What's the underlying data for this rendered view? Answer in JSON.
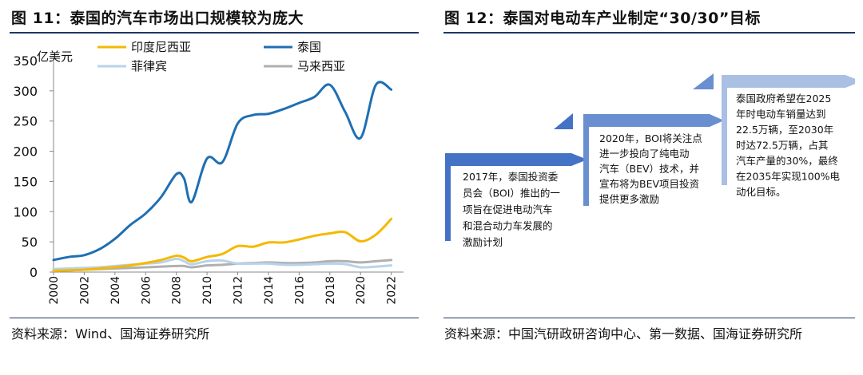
{
  "left_panel": {
    "title": "图 11：泰国的汽车市场出口规模较为庞大",
    "source": "资料来源：Wind、国海证券研究所"
  },
  "right_panel": {
    "title": "图 12：泰国对电动车产业制定“30/30”目标",
    "source": "资料来源：中国汽研政研咨询中心、第一数据、国海证券研究所",
    "steps": [
      {
        "lines": [
          "2017年，泰国投资委",
          "员会（BOI）推出的一",
          "项旨在促进电动汽车",
          "和混合动力车发展的",
          "激励计划"
        ],
        "color": "#4472c4"
      },
      {
        "lines": [
          "2020年，BOI将关注点",
          "进一步投向了纯电动",
          "汽车（BEV）技术，并",
          "宣布将为BEV项目投资",
          "提供更多激励"
        ],
        "color": "#6a8fd0"
      },
      {
        "lines": [
          "泰国政府希望在2025",
          "年时电动车销量达到",
          "22.5万辆，至2030年",
          "时达72.5万辆，占其",
          "汽车产量的30%，最终",
          "在2035年实现100%电",
          "动化目标。"
        ],
        "color": "#a9bfe4"
      }
    ]
  },
  "chart_data": {
    "type": "line",
    "ylabel": "亿美元",
    "ylim": [
      0,
      350
    ],
    "yticks": [
      0,
      50,
      100,
      150,
      200,
      250,
      300,
      350
    ],
    "xticks": [
      "2000",
      "2002",
      "2004",
      "2006",
      "2008",
      "2010",
      "2012",
      "2014",
      "2016",
      "2018",
      "2020",
      "2022"
    ],
    "grid": false,
    "legend_position": "top",
    "x": [
      2000,
      2001,
      2002,
      2003,
      2004,
      2005,
      2006,
      2007,
      2008,
      2008.5,
      2009,
      2010,
      2011,
      2012,
      2013,
      2014,
      2015,
      2016,
      2017,
      2018,
      2019,
      2020,
      2021,
      2022
    ],
    "series": [
      {
        "name": "印度尼西亚",
        "color": "#f5b800",
        "values": [
          2,
          3,
          4,
          6,
          8,
          11,
          15,
          20,
          27,
          24,
          18,
          25,
          30,
          43,
          42,
          49,
          49,
          54,
          60,
          64,
          66,
          51,
          62,
          88
        ]
      },
      {
        "name": "泰国",
        "color": "#1f6fb2",
        "values": [
          20,
          25,
          28,
          38,
          55,
          78,
          97,
          124,
          162,
          155,
          116,
          188,
          182,
          246,
          260,
          262,
          270,
          280,
          290,
          310,
          265,
          222,
          310,
          302
        ]
      },
      {
        "name": "菲律宾",
        "color": "#b7d3ec",
        "values": [
          5,
          6,
          7,
          8,
          10,
          12,
          14,
          16,
          22,
          18,
          13,
          18,
          19,
          14,
          14,
          14,
          12,
          12,
          13,
          14,
          13,
          8,
          9,
          11
        ]
      },
      {
        "name": "马来西亚",
        "color": "#b0b0b0",
        "values": [
          3,
          3,
          4,
          5,
          6,
          7,
          8,
          9,
          10,
          10,
          8,
          11,
          12,
          14,
          15,
          16,
          15,
          15,
          16,
          18,
          18,
          16,
          18,
          20
        ]
      }
    ]
  }
}
